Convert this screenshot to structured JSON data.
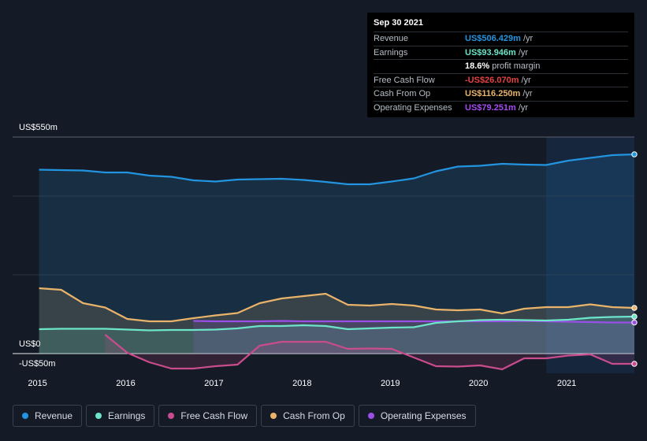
{
  "tooltip": {
    "date": "Sep 30 2021",
    "rows": [
      {
        "label": "Revenue",
        "value": "US$506.429m",
        "unit": "/yr",
        "color": "#2394df"
      },
      {
        "label": "Earnings",
        "value": "US$93.946m",
        "unit": "/yr",
        "color": "#6ce5c9"
      },
      {
        "label": "",
        "value": "18.6%",
        "unit": "profit margin",
        "color": "#ffffff"
      },
      {
        "label": "Free Cash Flow",
        "value": "-US$26.070m",
        "unit": "/yr",
        "color": "#e64141"
      },
      {
        "label": "Cash From Op",
        "value": "US$116.250m",
        "unit": "/yr",
        "color": "#e9b46a"
      },
      {
        "label": "Operating Expenses",
        "value": "US$79.251m",
        "unit": "/yr",
        "color": "#a64bf2"
      }
    ]
  },
  "legend": [
    {
      "label": "Revenue",
      "color": "#2394df"
    },
    {
      "label": "Earnings",
      "color": "#6ce5c9"
    },
    {
      "label": "Free Cash Flow",
      "color": "#c94c8d"
    },
    {
      "label": "Cash From Op",
      "color": "#e9b46a"
    },
    {
      "label": "Operating Expenses",
      "color": "#9a4fe8"
    }
  ],
  "chart_data": {
    "type": "line",
    "y_tick_labels": [
      "US$550m",
      "US$0",
      "-US$50m"
    ],
    "ylim": [
      -50,
      550
    ],
    "x_tick_labels": [
      "2015",
      "2016",
      "2017",
      "2018",
      "2019",
      "2020",
      "2021"
    ],
    "x_range": [
      2014.7,
      2021.75
    ],
    "highlight_start": 2020.75,
    "series": [
      {
        "name": "Revenue",
        "color": "#2394df",
        "x": [
          2015.0,
          2015.25,
          2015.5,
          2015.75,
          2016.0,
          2016.25,
          2016.5,
          2016.75,
          2017.0,
          2017.25,
          2017.5,
          2017.75,
          2018.0,
          2018.25,
          2018.5,
          2018.75,
          2019.0,
          2019.25,
          2019.5,
          2019.75,
          2020.0,
          2020.25,
          2020.5,
          2020.75,
          2021.0,
          2021.25,
          2021.5,
          2021.75
        ],
        "y": [
          467,
          466,
          465,
          460,
          460,
          452,
          449,
          440,
          437,
          442,
          443,
          444,
          441,
          436,
          430,
          430,
          437,
          445,
          463,
          475,
          477,
          482,
          480,
          479,
          490,
          497,
          504,
          506
        ]
      },
      {
        "name": "Earnings",
        "color": "#6ce5c9",
        "x": [
          2015.0,
          2015.25,
          2015.5,
          2015.75,
          2016.0,
          2016.25,
          2016.5,
          2016.75,
          2017.0,
          2017.25,
          2017.5,
          2017.75,
          2018.0,
          2018.25,
          2018.5,
          2018.75,
          2019.0,
          2019.25,
          2019.5,
          2019.75,
          2020.0,
          2020.25,
          2020.5,
          2020.75,
          2021.0,
          2021.25,
          2021.5,
          2021.75
        ],
        "y": [
          62,
          63,
          63,
          63,
          61,
          59,
          60,
          60,
          61,
          64,
          70,
          70,
          72,
          70,
          62,
          64,
          66,
          67,
          78,
          82,
          85,
          86,
          85,
          84,
          86,
          91,
          93,
          94
        ]
      },
      {
        "name": "Free Cash Flow",
        "color": "#c94c8d",
        "x": [
          2015.75,
          2016.0,
          2016.25,
          2016.5,
          2016.75,
          2017.0,
          2017.25,
          2017.5,
          2017.75,
          2018.0,
          2018.25,
          2018.5,
          2018.75,
          2019.0,
          2019.25,
          2019.5,
          2019.75,
          2020.0,
          2020.25,
          2020.5,
          2020.75,
          2021.0,
          2021.25,
          2021.5,
          2021.75
        ],
        "y": [
          48,
          2,
          -22,
          -38,
          -38,
          -32,
          -28,
          20,
          30,
          30,
          30,
          12,
          13,
          12,
          -10,
          -32,
          -33,
          -30,
          -40,
          -12,
          -12,
          -5,
          -2,
          -26,
          -26
        ]
      },
      {
        "name": "Cash From Op",
        "color": "#e9b46a",
        "x": [
          2015.0,
          2015.25,
          2015.5,
          2015.75,
          2016.0,
          2016.25,
          2016.5,
          2016.75,
          2017.0,
          2017.25,
          2017.5,
          2017.75,
          2018.0,
          2018.25,
          2018.5,
          2018.75,
          2019.0,
          2019.25,
          2019.5,
          2019.75,
          2020.0,
          2020.25,
          2020.5,
          2020.75,
          2021.0,
          2021.25,
          2021.5,
          2021.75
        ],
        "y": [
          166,
          162,
          128,
          117,
          88,
          82,
          82,
          90,
          97,
          103,
          128,
          140,
          146,
          152,
          124,
          122,
          126,
          122,
          112,
          110,
          112,
          102,
          114,
          118,
          118,
          125,
          118,
          116
        ]
      },
      {
        "name": "Operating Expenses",
        "color": "#9a4fe8",
        "x": [
          2016.75,
          2017.0,
          2017.25,
          2017.5,
          2017.75,
          2018.0,
          2018.25,
          2018.5,
          2018.75,
          2019.0,
          2019.25,
          2019.5,
          2019.75,
          2020.0,
          2020.25,
          2020.5,
          2020.75,
          2021.0,
          2021.25,
          2021.5,
          2021.75
        ],
        "y": [
          83,
          82,
          82,
          82,
          83,
          82,
          82,
          82,
          82,
          82,
          82,
          82,
          82,
          82,
          82,
          83,
          82,
          81,
          80,
          79,
          79
        ]
      }
    ]
  }
}
